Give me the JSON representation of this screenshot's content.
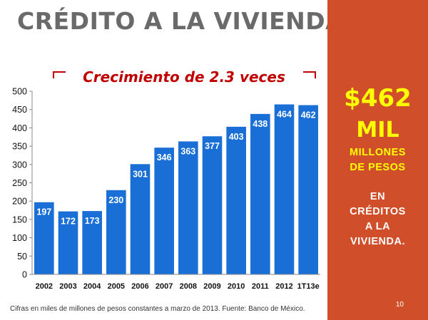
{
  "title": "CRÉDITO A LA VIVIENDA",
  "panel": {
    "amount": "$462",
    "unit": "MIL",
    "line1": "MILLONES",
    "line2": "DE PESOS",
    "line3": "EN",
    "line4": "CRÉDITOS",
    "line5": "A LA",
    "line6": "VIVIENDA."
  },
  "footnote": "Cifras en miles de millones de pesos constantes a marzo de 2013. Fuente: Banco de México.",
  "page_number": "10",
  "colors": {
    "bar": "#1a6fd6",
    "panel": "#d04f2a",
    "annotation": "#c00000",
    "highlight": "#ffff00"
  },
  "chart_data": {
    "type": "bar",
    "title": "",
    "xlabel": "",
    "ylabel": "",
    "annotation": "Crecimiento de 2.3 veces",
    "categories": [
      "2002",
      "2003",
      "2004",
      "2005",
      "2006",
      "2007",
      "2008",
      "2009",
      "2010",
      "2011",
      "2012",
      "1T13e"
    ],
    "values": [
      197,
      172,
      173,
      230,
      301,
      346,
      363,
      377,
      403,
      438,
      464,
      462
    ],
    "ylim": [
      0,
      500
    ],
    "yticks": [
      0,
      50,
      100,
      150,
      200,
      250,
      300,
      350,
      400,
      450,
      500
    ],
    "grid": false,
    "legend": "none"
  }
}
